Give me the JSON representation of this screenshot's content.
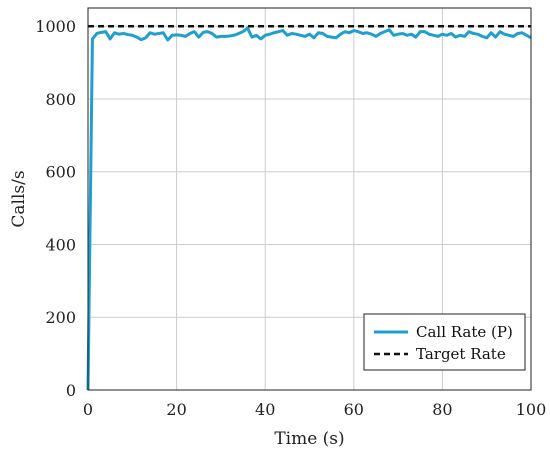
{
  "chart_data": {
    "type": "line",
    "xlabel": "Time (s)",
    "ylabel": "Calls/s",
    "xlim": [
      0,
      100
    ],
    "ylim": [
      0,
      1050
    ],
    "xticks": [
      0,
      20,
      40,
      60,
      80,
      100
    ],
    "yticks": [
      0,
      200,
      400,
      600,
      800,
      1000
    ],
    "grid": true,
    "legend_position": "bottom-right",
    "series": [
      {
        "name": "Call Rate (P)",
        "color": "#1f9fd0",
        "style": "solid",
        "x": [
          0,
          1,
          2,
          3,
          4,
          5,
          6,
          7,
          8,
          9,
          10,
          11,
          12,
          13,
          14,
          15,
          16,
          17,
          18,
          19,
          20,
          21,
          22,
          23,
          24,
          25,
          26,
          27,
          28,
          29,
          30,
          31,
          32,
          33,
          34,
          35,
          36,
          37,
          38,
          39,
          40,
          41,
          42,
          43,
          44,
          45,
          46,
          47,
          48,
          49,
          50,
          51,
          52,
          53,
          54,
          55,
          56,
          57,
          58,
          59,
          60,
          61,
          62,
          63,
          64,
          65,
          66,
          67,
          68,
          69,
          70,
          71,
          72,
          73,
          74,
          75,
          76,
          77,
          78,
          79,
          80,
          81,
          82,
          83,
          84,
          85,
          86,
          87,
          88,
          89,
          90,
          91,
          92,
          93,
          94,
          95,
          96,
          97,
          98,
          99,
          100
        ],
        "y": [
          0,
          965,
          980,
          983,
          985,
          965,
          982,
          978,
          980,
          977,
          975,
          970,
          963,
          968,
          982,
          978,
          980,
          982,
          962,
          975,
          976,
          975,
          972,
          980,
          985,
          970,
          983,
          985,
          980,
          970,
          972,
          972,
          973,
          975,
          980,
          985,
          995,
          970,
          975,
          965,
          975,
          978,
          982,
          985,
          988,
          975,
          980,
          978,
          975,
          972,
          978,
          968,
          982,
          980,
          972,
          970,
          968,
          978,
          985,
          982,
          988,
          985,
          980,
          982,
          978,
          972,
          980,
          985,
          990,
          975,
          978,
          980,
          975,
          978,
          970,
          985,
          985,
          978,
          975,
          972,
          978,
          975,
          980,
          970,
          975,
          972,
          985,
          980,
          978,
          972,
          968,
          982,
          970,
          985,
          978,
          975,
          972,
          980,
          982,
          975,
          968
        ]
      },
      {
        "name": "Target Rate",
        "color": "#111111",
        "style": "dashed",
        "x": [
          0,
          100
        ],
        "y": [
          1000,
          1000
        ]
      }
    ]
  }
}
